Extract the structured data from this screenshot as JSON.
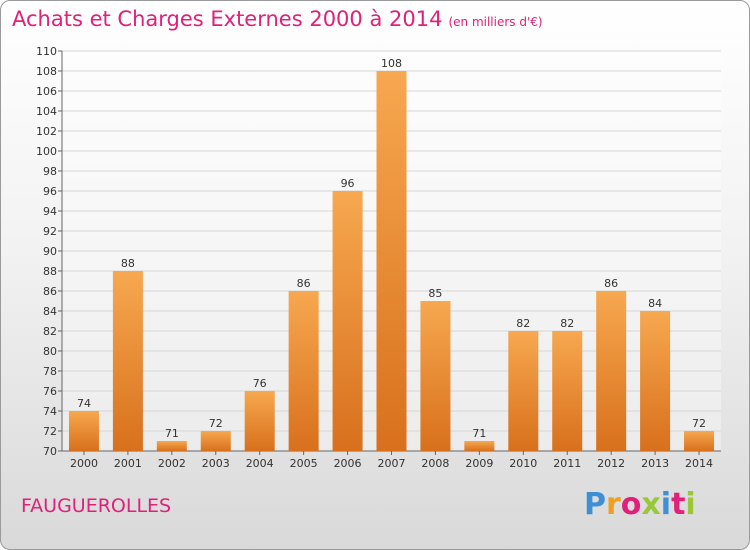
{
  "page": {
    "title": "Achats et Charges Externes 2000 à 2014",
    "subtitle": "(en milliers d'€)",
    "location": "FAUGUEROLLES",
    "logo_text": "Proxiti"
  },
  "colors": {
    "title": "#e0207a",
    "bar_light": "#f7a850",
    "bar_dark": "#d8701c",
    "logo": [
      "#3d8fd6",
      "#f0a020",
      "#e0207a",
      "#9ac73a",
      "#3d8fd6",
      "#e0207a",
      "#9ac73a"
    ]
  },
  "chart_data": {
    "type": "bar",
    "title": "Achats et Charges Externes 2000 à 2014",
    "subtitle": "(en milliers d'€)",
    "xlabel": "",
    "ylabel": "",
    "categories": [
      "2000",
      "2001",
      "2002",
      "2003",
      "2004",
      "2005",
      "2006",
      "2007",
      "2008",
      "2009",
      "2010",
      "2011",
      "2012",
      "2013",
      "2014"
    ],
    "values": [
      74,
      88,
      71,
      72,
      76,
      86,
      96,
      108,
      85,
      71,
      82,
      82,
      86,
      84,
      72
    ],
    "ylim": [
      70,
      110
    ],
    "yticks": [
      70,
      72,
      74,
      76,
      78,
      80,
      82,
      84,
      86,
      88,
      90,
      92,
      94,
      96,
      98,
      100,
      102,
      104,
      106,
      108,
      110
    ],
    "grid": true,
    "legend": "none"
  }
}
